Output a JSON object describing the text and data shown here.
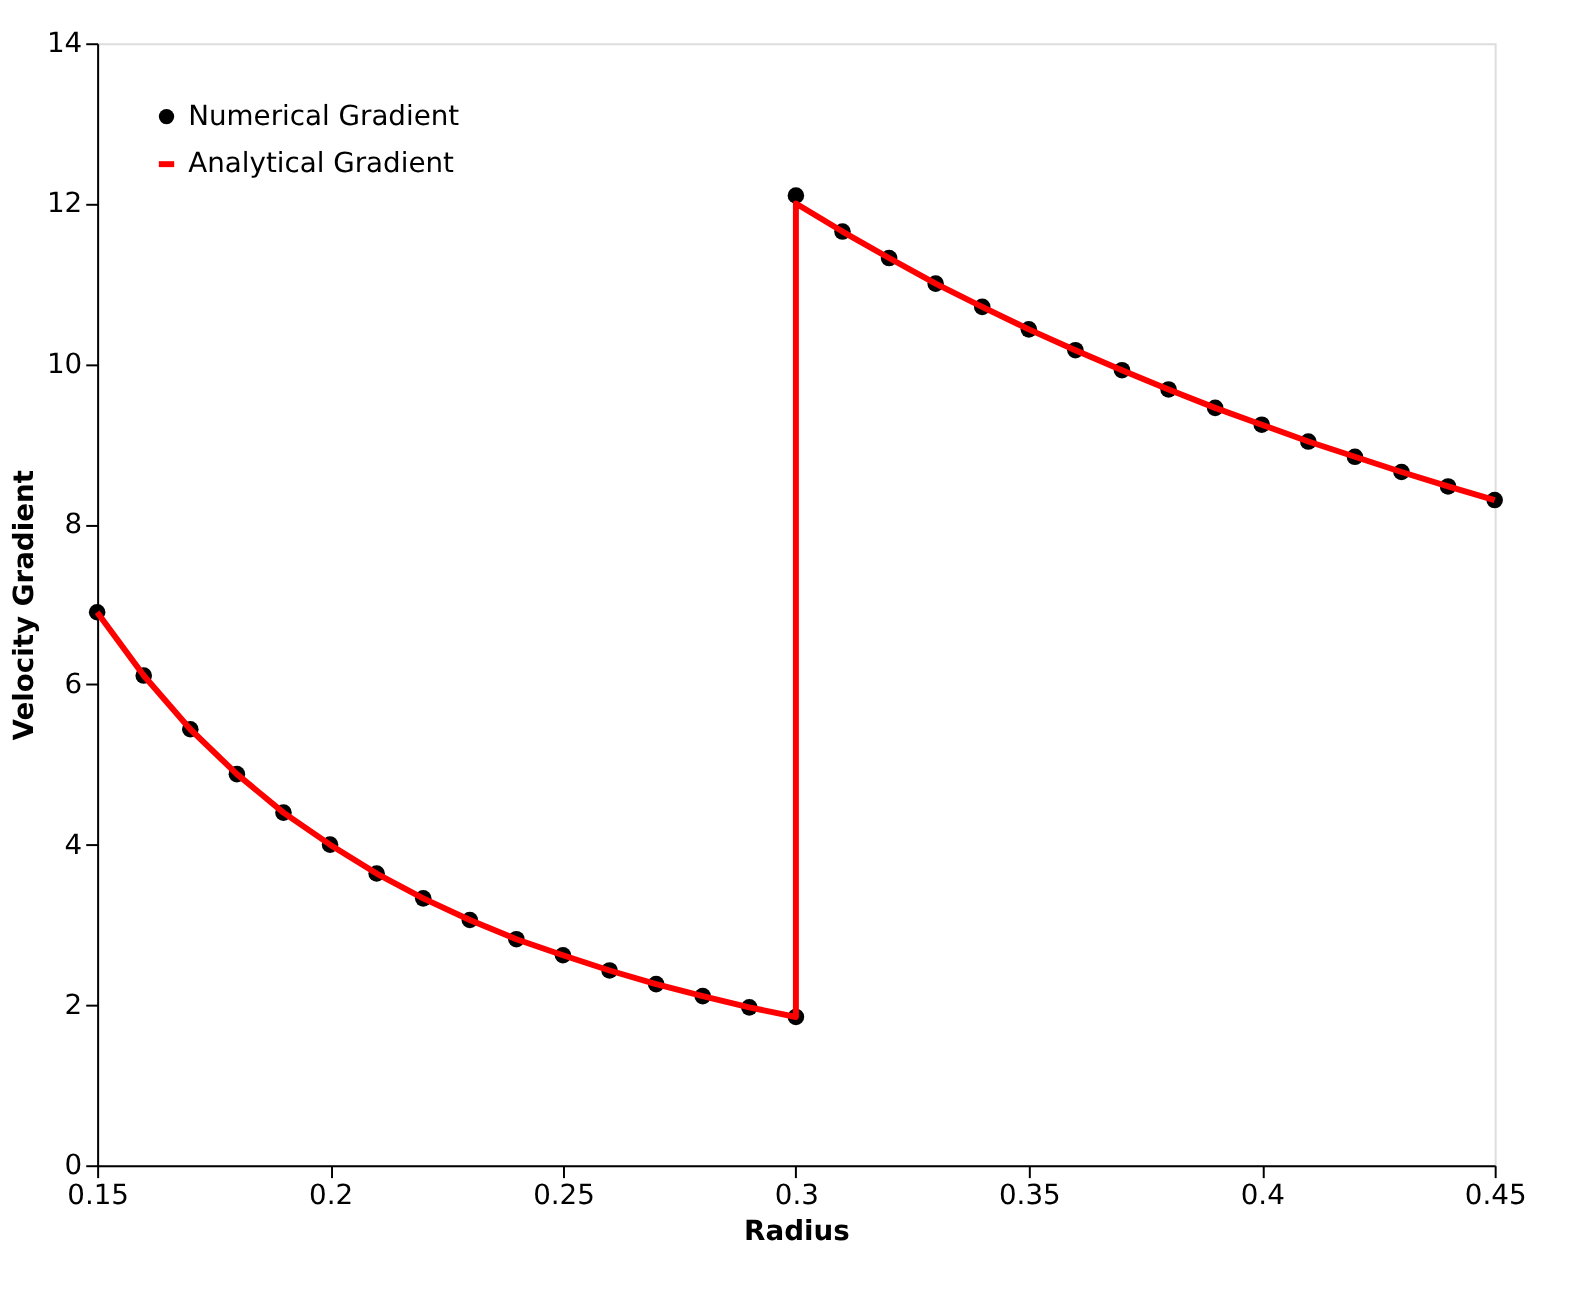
{
  "chart_data": {
    "type": "line",
    "xlabel": "Radius",
    "ylabel": "Velocity Gradient",
    "xlim": [
      0.15,
      0.45
    ],
    "ylim": [
      0,
      14
    ],
    "xticks": [
      0.15,
      {
        "value": 0.2,
        "label": "0.2"
      },
      0.25,
      {
        "value": 0.3,
        "label": "0.3"
      },
      0.35,
      {
        "value": 0.4,
        "label": "0.4"
      },
      0.45
    ],
    "yticks": [
      0,
      2,
      4,
      6,
      8,
      10,
      12,
      14
    ],
    "grid": false,
    "legend": "top left",
    "series": [
      {
        "name": "Numerical Gradient",
        "type": "scatter",
        "marker": "circle",
        "color": "#000000",
        "x": [
          0.15,
          0.16,
          0.17,
          0.18,
          0.19,
          0.2,
          0.21,
          0.22,
          0.23,
          0.24,
          0.25,
          0.26,
          0.27,
          0.28,
          0.29,
          0.3,
          0.3,
          0.31,
          0.32,
          0.33,
          0.34,
          0.35,
          0.36,
          0.37,
          0.38,
          0.39,
          0.4,
          0.41,
          0.42,
          0.43,
          0.44,
          0.45
        ],
        "values": [
          6.9,
          6.11,
          5.44,
          4.88,
          4.4,
          4.0,
          3.64,
          3.33,
          3.06,
          2.82,
          2.62,
          2.43,
          2.26,
          2.11,
          1.97,
          1.85,
          12.1,
          11.65,
          11.32,
          11.0,
          10.71,
          10.43,
          10.17,
          9.92,
          9.68,
          9.45,
          9.24,
          9.03,
          8.84,
          8.65,
          8.47,
          8.3
        ]
      },
      {
        "name": "Analytical Gradient",
        "type": "line",
        "line_style": "solid",
        "color": "#ff0000",
        "x": [
          0.15,
          0.16,
          0.17,
          0.18,
          0.19,
          0.2,
          0.21,
          0.22,
          0.23,
          0.24,
          0.25,
          0.26,
          0.27,
          0.28,
          0.29,
          0.3,
          0.3,
          0.31,
          0.32,
          0.33,
          0.34,
          0.35,
          0.36,
          0.37,
          0.38,
          0.39,
          0.4,
          0.41,
          0.42,
          0.43,
          0.44,
          0.45
        ],
        "values": [
          6.9,
          6.11,
          5.44,
          4.88,
          4.4,
          4.0,
          3.64,
          3.33,
          3.06,
          2.82,
          2.62,
          2.43,
          2.26,
          2.11,
          1.97,
          1.85,
          12.0,
          11.65,
          11.32,
          11.0,
          10.71,
          10.43,
          10.17,
          9.92,
          9.68,
          9.45,
          9.24,
          9.03,
          8.84,
          8.65,
          8.47,
          8.3
        ]
      }
    ]
  }
}
